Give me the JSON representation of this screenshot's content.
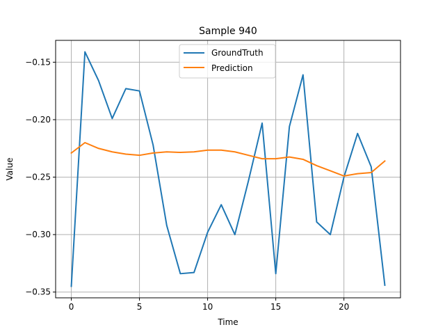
{
  "chart_data": {
    "type": "line",
    "title": "Sample 940",
    "xlabel": "Time",
    "ylabel": "Value",
    "xlim": [
      -1.15,
      24.15
    ],
    "ylim": [
      -0.355,
      -0.131
    ],
    "x": [
      0,
      1,
      2,
      3,
      4,
      5,
      6,
      7,
      8,
      9,
      10,
      11,
      12,
      13,
      14,
      15,
      16,
      17,
      18,
      19,
      20,
      21,
      22,
      23
    ],
    "xticks": [
      0,
      5,
      10,
      15,
      20
    ],
    "xtick_labels": [
      "0",
      "5",
      "10",
      "15",
      "20"
    ],
    "yticks": [
      -0.15,
      -0.2,
      -0.25,
      -0.3,
      -0.35
    ],
    "ytick_labels": [
      "−0.15",
      "−0.20",
      "−0.25",
      "−0.30",
      "−0.35"
    ],
    "grid": true,
    "legend_position": "top-center",
    "series": [
      {
        "name": "GroundTruth",
        "color": "#1f77b4",
        "values": [
          -0.345,
          -0.141,
          -0.166,
          -0.199,
          -0.173,
          -0.175,
          -0.222,
          -0.292,
          -0.334,
          -0.333,
          -0.298,
          -0.274,
          -0.3,
          -0.253,
          -0.203,
          -0.334,
          -0.206,
          -0.161,
          -0.289,
          -0.3,
          -0.25,
          -0.212,
          -0.241,
          -0.344
        ]
      },
      {
        "name": "Prediction",
        "color": "#ff7f0e",
        "values": [
          -0.229,
          -0.22,
          -0.225,
          -0.228,
          -0.23,
          -0.231,
          -0.229,
          -0.228,
          -0.2285,
          -0.228,
          -0.2265,
          -0.2265,
          -0.228,
          -0.231,
          -0.234,
          -0.234,
          -0.2325,
          -0.2345,
          -0.24,
          -0.2445,
          -0.249,
          -0.247,
          -0.246,
          -0.236
        ]
      }
    ]
  }
}
